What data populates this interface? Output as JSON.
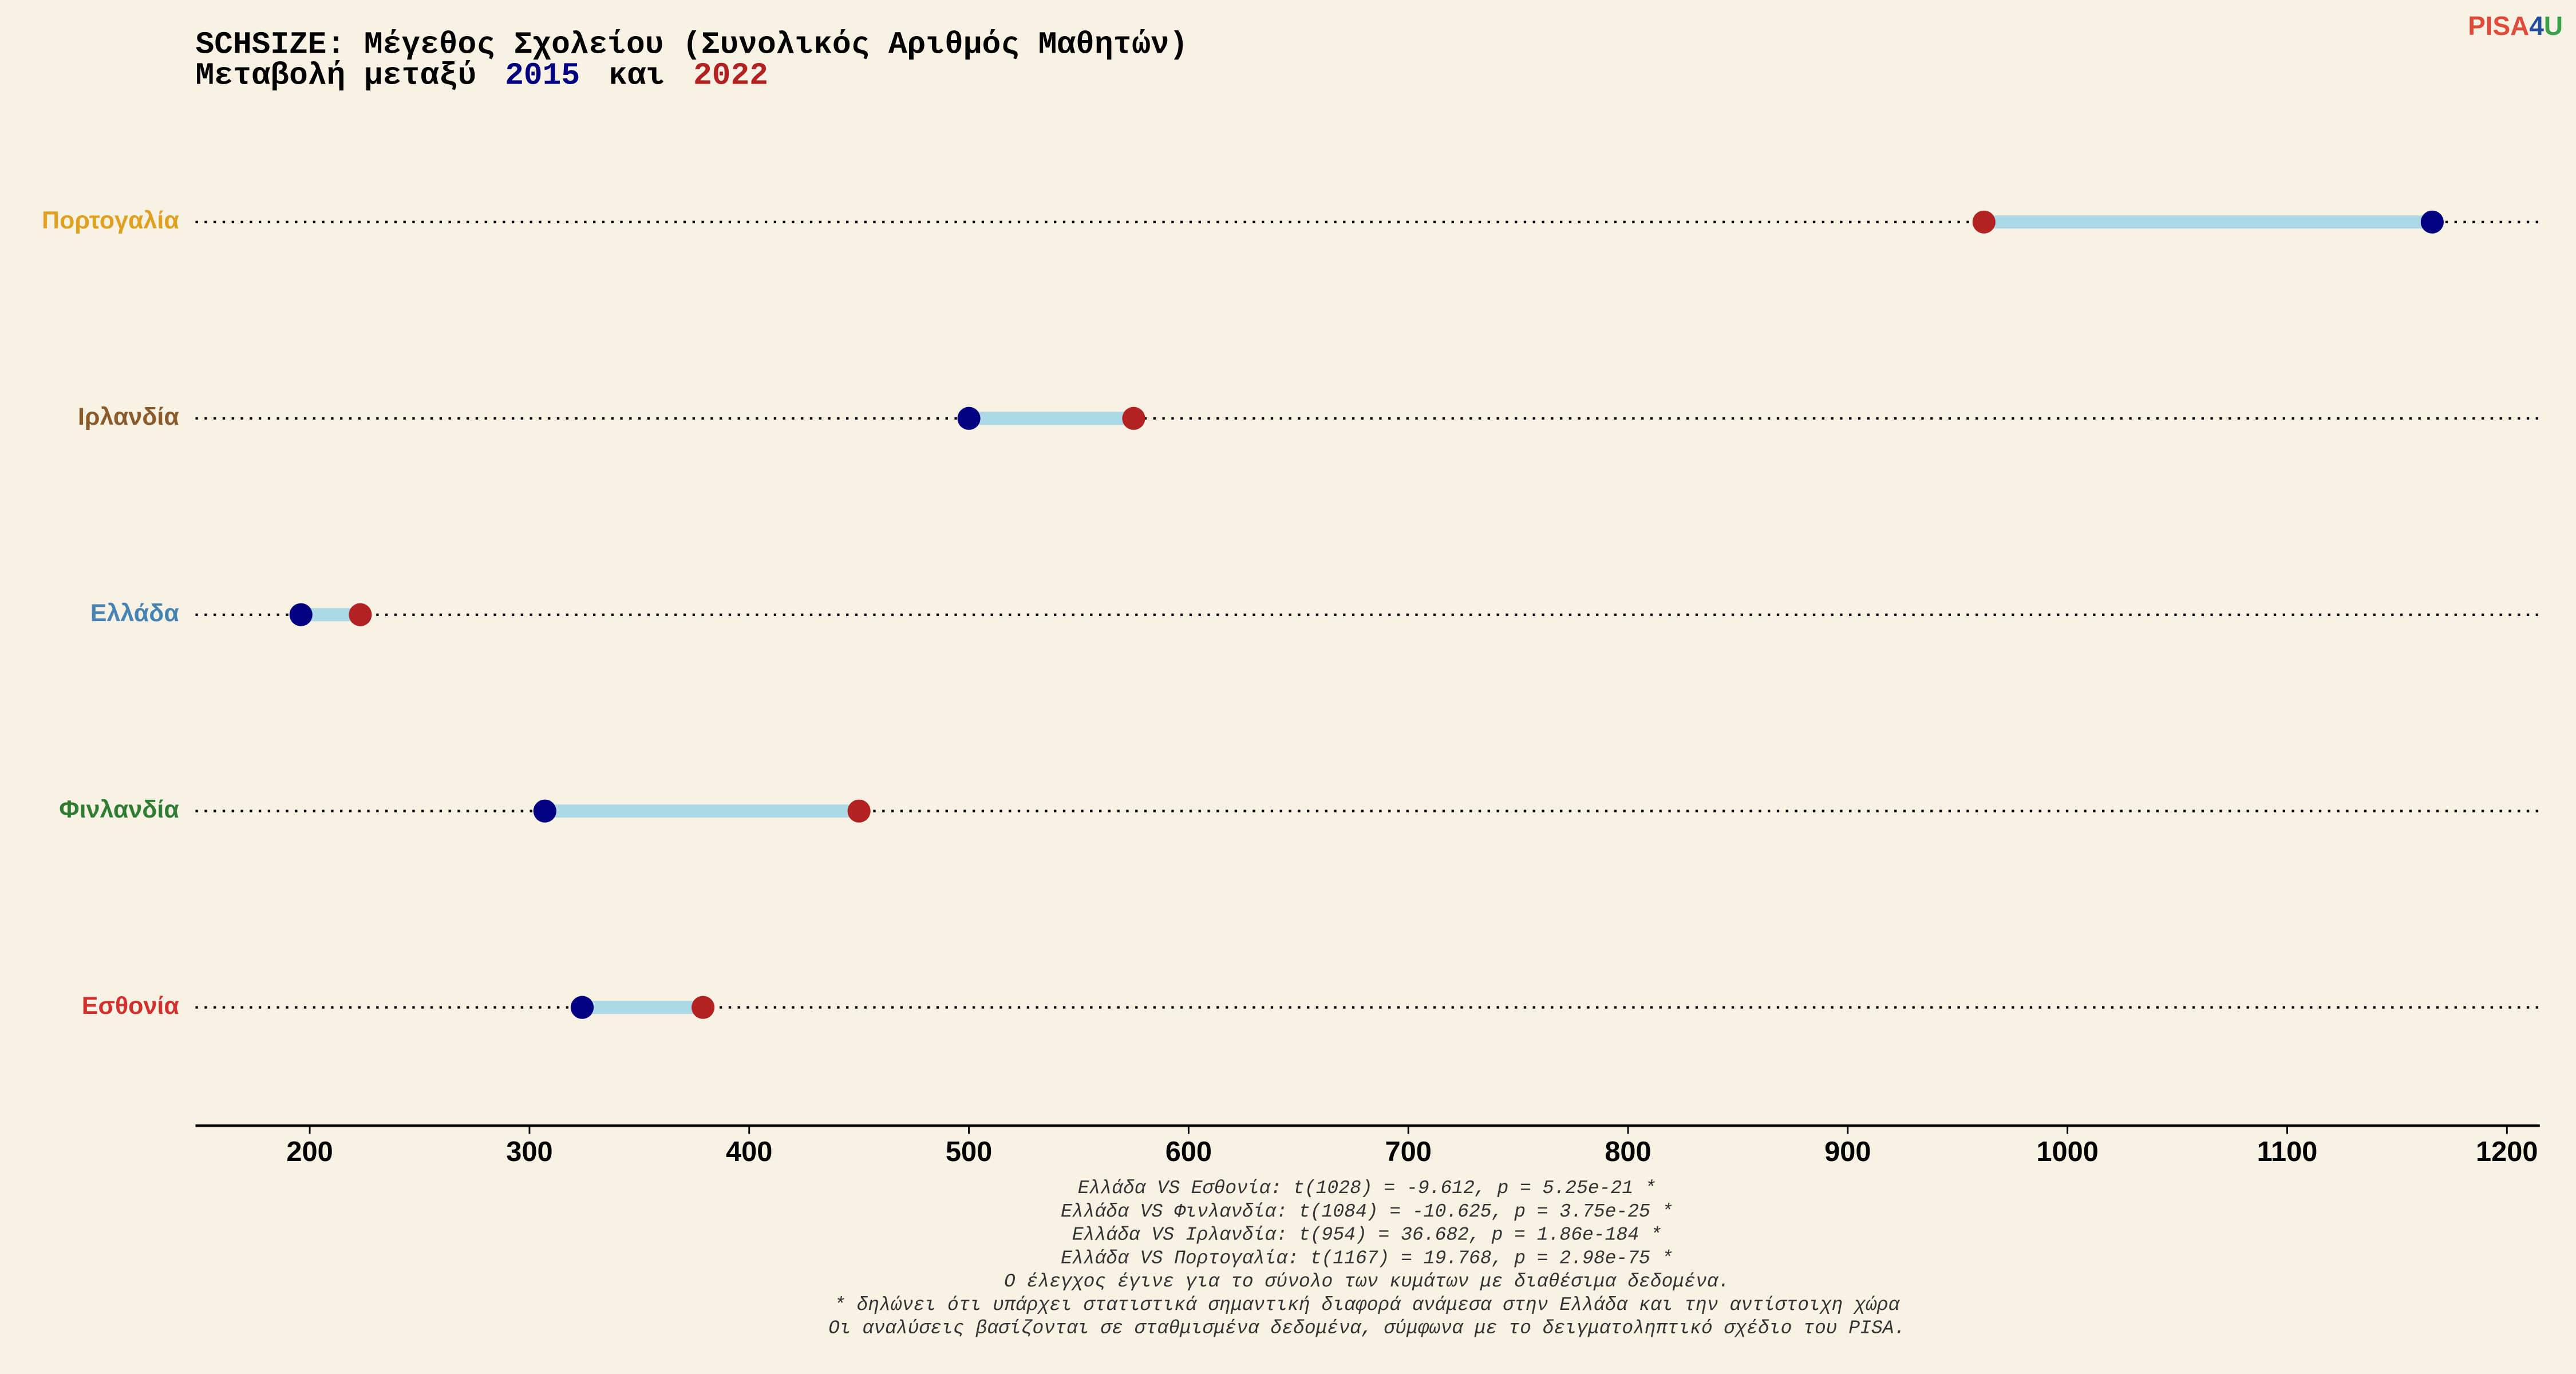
{
  "chart_data": {
    "type": "dumbbell",
    "title": "SCHSIZE: Μέγεθος Σχολείου (Συνολικός Αριθμός Μαθητών)",
    "subtitle": "Μεταβολή μεταξύ",
    "subtitle_connector": "και",
    "categories": [
      "Πορτογαλία",
      "Ιρλανδία",
      "Ελλάδα",
      "Φινλανδία",
      "Εσθονία"
    ],
    "category_colors": [
      "#e0a020",
      "#8b5a2b",
      "#4682b4",
      "#2e7d32",
      "#d32f2f"
    ],
    "series": [
      {
        "name": "2015",
        "color": "#000080",
        "values": [
          1166,
          500,
          196,
          307,
          324
        ]
      },
      {
        "name": "2022",
        "color": "#b22222",
        "values": [
          962,
          575,
          223,
          450,
          379
        ]
      }
    ],
    "range_color": "#add8e6",
    "xlim": [
      148,
      1215
    ],
    "xticks": [
      200,
      300,
      400,
      500,
      600,
      700,
      800,
      900,
      1000,
      1100,
      1200
    ],
    "footnotes": [
      "Ελλάδα VS Εσθονία: t(1028) = -9.612, p = 5.25e-21 *",
      "Ελλάδα VS Φινλανδία: t(1084) = -10.625, p = 3.75e-25 *",
      "Ελλάδα VS Ιρλανδία: t(954) = 36.682, p = 1.86e-184 *",
      "Ελλάδα VS Πορτογαλία: t(1167) = 19.768, p = 2.98e-75 *",
      "Ο έλεγχος έγινε για το σύνολο των κυμάτων με διαθέσιμα δεδομένα.",
      "* δηλώνει ότι υπάρχει στατιστικά σημαντική διαφορά ανάμεσα στην Ελλάδα και την αντίστοιχη χώρα",
      "Οι αναλύσεις βασίζονται σε σταθμισμένα δεδομένα, σύμφωνα με το δειγματοληπτικό σχέδιο του PISA."
    ],
    "logo": [
      "PISA",
      "4",
      "U"
    ]
  }
}
